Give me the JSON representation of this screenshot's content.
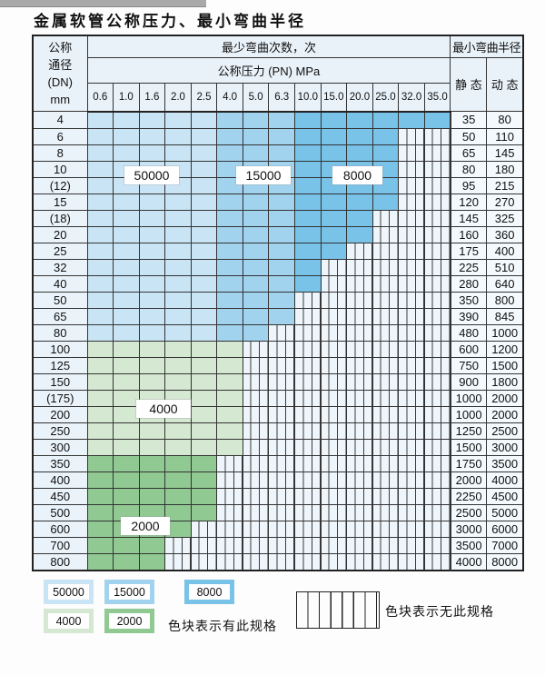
{
  "title": "金属软管公称压力、最小弯曲半径",
  "table": {
    "corner_header_lines": [
      "公称",
      "通径",
      "(DN)",
      "mm"
    ],
    "bend_cycles_header": "最少弯曲次数，次",
    "pressure_header": "公称压力 (PN) MPa",
    "radius_header": "最小弯曲半径",
    "static_label": "静 态",
    "dynamic_label": "动 态",
    "pressure_columns": [
      "0.6",
      "1.0",
      "1.6",
      "2.0",
      "2.5",
      "4.0",
      "5.0",
      "6.3",
      "10.0",
      "15.0",
      "20.0",
      "25.0",
      "32.0",
      "35.0"
    ],
    "rows": [
      {
        "dn": "4",
        "max_pn": "35.0",
        "shade": "blue",
        "static": "35",
        "dynamic": "80"
      },
      {
        "dn": "6",
        "max_pn": "25.0",
        "shade": "blue",
        "static": "50",
        "dynamic": "110"
      },
      {
        "dn": "8",
        "max_pn": "25.0",
        "shade": "blue",
        "static": "65",
        "dynamic": "145"
      },
      {
        "dn": "10",
        "max_pn": "25.0",
        "shade": "blue",
        "static": "80",
        "dynamic": "180"
      },
      {
        "dn": "(12)",
        "max_pn": "25.0",
        "shade": "blue",
        "static": "95",
        "dynamic": "215"
      },
      {
        "dn": "15",
        "max_pn": "25.0",
        "shade": "blue",
        "static": "120",
        "dynamic": "270"
      },
      {
        "dn": "(18)",
        "max_pn": "20.0",
        "shade": "blue",
        "static": "145",
        "dynamic": "325"
      },
      {
        "dn": "20",
        "max_pn": "20.0",
        "shade": "blue",
        "static": "160",
        "dynamic": "360"
      },
      {
        "dn": "25",
        "max_pn": "15.0",
        "shade": "blue",
        "static": "175",
        "dynamic": "400"
      },
      {
        "dn": "32",
        "max_pn": "10.0",
        "shade": "blue",
        "static": "225",
        "dynamic": "510"
      },
      {
        "dn": "40",
        "max_pn": "10.0",
        "shade": "blue",
        "static": "280",
        "dynamic": "640"
      },
      {
        "dn": "50",
        "max_pn": "6.3",
        "shade": "blue",
        "static": "350",
        "dynamic": "800"
      },
      {
        "dn": "65",
        "max_pn": "6.3",
        "shade": "blue",
        "static": "390",
        "dynamic": "845"
      },
      {
        "dn": "80",
        "max_pn": "5.0",
        "shade": "blue",
        "static": "480",
        "dynamic": "1000"
      },
      {
        "dn": "100",
        "max_pn": "4.0",
        "shade": "green-light",
        "static": "600",
        "dynamic": "1200"
      },
      {
        "dn": "125",
        "max_pn": "4.0",
        "shade": "green-light",
        "static": "750",
        "dynamic": "1500"
      },
      {
        "dn": "150",
        "max_pn": "4.0",
        "shade": "green-light",
        "static": "900",
        "dynamic": "1800"
      },
      {
        "dn": "(175)",
        "max_pn": "4.0",
        "shade": "green-light",
        "static": "1000",
        "dynamic": "2000"
      },
      {
        "dn": "200",
        "max_pn": "4.0",
        "shade": "green-light",
        "static": "1000",
        "dynamic": "2000"
      },
      {
        "dn": "250",
        "max_pn": "4.0",
        "shade": "green-light",
        "static": "1250",
        "dynamic": "2500"
      },
      {
        "dn": "300",
        "max_pn": "4.0",
        "shade": "green-light",
        "static": "1500",
        "dynamic": "3000"
      },
      {
        "dn": "350",
        "max_pn": "2.5",
        "shade": "green-mid",
        "static": "1750",
        "dynamic": "3500"
      },
      {
        "dn": "400",
        "max_pn": "2.5",
        "shade": "green-mid",
        "static": "2000",
        "dynamic": "4000"
      },
      {
        "dn": "450",
        "max_pn": "2.5",
        "shade": "green-mid",
        "static": "2250",
        "dynamic": "4500"
      },
      {
        "dn": "500",
        "max_pn": "2.5",
        "shade": "green-mid",
        "static": "2500",
        "dynamic": "5000"
      },
      {
        "dn": "600",
        "max_pn": "2.0",
        "shade": "green-mid",
        "static": "3000",
        "dynamic": "6000"
      },
      {
        "dn": "700",
        "max_pn": "1.6",
        "shade": "green-mid",
        "static": "3500",
        "dynamic": "7000"
      },
      {
        "dn": "800",
        "max_pn": "1.6",
        "shade": "green-mid",
        "static": "4000",
        "dynamic": "8000"
      }
    ],
    "overlay_labels": [
      {
        "text": "50000"
      },
      {
        "text": "15000"
      },
      {
        "text": "8000"
      },
      {
        "text": "4000"
      },
      {
        "text": "2000"
      }
    ]
  },
  "legend": {
    "has_spec_items": [
      {
        "text": "50000",
        "shade": "blue-light"
      },
      {
        "text": "15000",
        "shade": "blue-mid"
      },
      {
        "text": "8000",
        "shade": "blue-dark"
      },
      {
        "text": "4000",
        "shade": "green-light"
      },
      {
        "text": "2000",
        "shade": "green-mid"
      }
    ],
    "has_spec_text": "色块表示有此规格",
    "no_spec_text": "色块表示无此规格"
  },
  "colors": {
    "blue_light_50000": "#c9e5f5",
    "blue_mid_15000": "#a2d3ee",
    "blue_dark_8000": "#79c2e8",
    "green_light_4000": "#d5e8d1",
    "green_mid_2000": "#90c992",
    "striped_bg": "#eef5fb",
    "header_bg": "#e9f2f9",
    "grid_line": "#333333"
  }
}
